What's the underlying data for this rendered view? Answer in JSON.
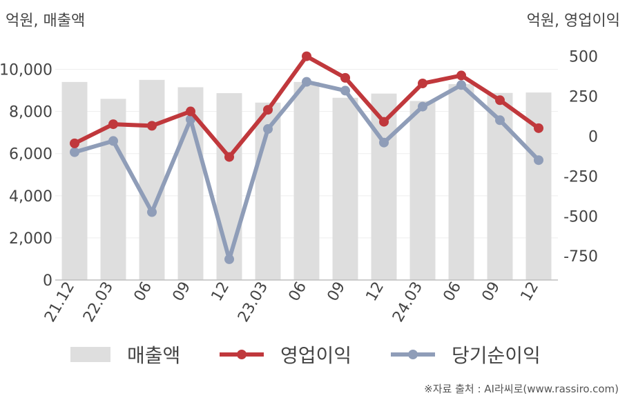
{
  "colors": {
    "bar": "#dedede",
    "operating": "#c0383c",
    "net": "#8f9db8",
    "axis": "#bdbdbd",
    "grid": "#eeeeee",
    "text": "#444444"
  },
  "units": {
    "left": "억원, 매출액",
    "right": "억원, 영업이익"
  },
  "legend": {
    "bar": "매출액",
    "operating": "영업이익",
    "net": "당기순이익"
  },
  "source": "※자료 출처 : AI라씨로(www.rassiro.com)",
  "chart_data": {
    "type": "bar+line",
    "categories": [
      "21.12",
      "22.03",
      "06",
      "09",
      "12",
      "23.03",
      "06",
      "09",
      "12",
      "24.03",
      "06",
      "09",
      "12"
    ],
    "left_axis": {
      "ylim": [
        0,
        11000
      ],
      "ticks": [
        0,
        2000,
        4000,
        6000,
        8000,
        10000
      ],
      "tick_labels": [
        "0",
        "2,000",
        "4,000",
        "6,000",
        "8,000",
        "10,000"
      ]
    },
    "right_axis": {
      "ylim": [
        -900,
        550
      ],
      "ticks": [
        -750,
        -500,
        -250,
        0,
        250,
        500
      ],
      "tick_labels": [
        "-750",
        "-500",
        "-250",
        "0",
        "250",
        "500"
      ]
    },
    "series": [
      {
        "name": "매출액",
        "kind": "bar",
        "axis": "left",
        "values": [
          9400,
          8600,
          9500,
          9150,
          8870,
          8420,
          9400,
          8650,
          8850,
          8500,
          9300,
          8880,
          8900
        ]
      },
      {
        "name": "영업이익",
        "kind": "line",
        "axis": "right",
        "values": [
          -45,
          75,
          65,
          155,
          -130,
          165,
          500,
          365,
          90,
          330,
          380,
          225,
          50
        ]
      },
      {
        "name": "당기순이익",
        "kind": "line",
        "axis": "right",
        "values": [
          -100,
          -30,
          -475,
          105,
          -770,
          45,
          340,
          285,
          -40,
          185,
          320,
          100,
          -150
        ]
      }
    ]
  }
}
